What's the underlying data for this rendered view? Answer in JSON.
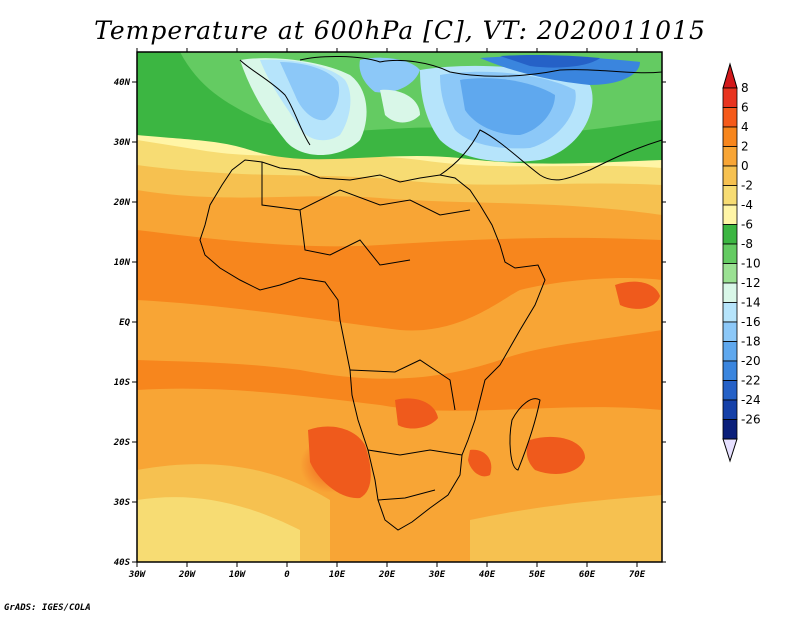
{
  "title": "Temperature at 600hPa [C], VT: 2020011015",
  "footer": "GrADS: IGES/COLA",
  "map": {
    "lon_range": [
      -30,
      75
    ],
    "lat_range": [
      -40,
      45
    ],
    "lon_ticks": [
      "30W",
      "20W",
      "10W",
      "0",
      "10E",
      "20E",
      "30E",
      "40E",
      "50E",
      "60E",
      "70E"
    ],
    "lat_ticks": [
      "40N",
      "30N",
      "20N",
      "10N",
      "EQ",
      "10S",
      "20S",
      "30S",
      "40S"
    ]
  },
  "colorbar": {
    "labels": [
      "8",
      "6",
      "4",
      "2",
      "0",
      "-2",
      "-4",
      "-6",
      "-8",
      "-10",
      "-12",
      "-14",
      "-16",
      "-18",
      "-20",
      "-22",
      "-24",
      "-26"
    ],
    "colors": [
      "#e8341f",
      "#f55a1a",
      "#f7861d",
      "#f8a535",
      "#f6c150",
      "#f7dc73",
      "#fff5a6",
      "#3cb642",
      "#64cb62",
      "#9be193",
      "#d9f7e8",
      "#b6e4fb",
      "#8cc8f8",
      "#5fa8ee",
      "#3a85de",
      "#2561c7",
      "#1540a8",
      "#0a1f7a"
    ],
    "over_color": "#d2191b",
    "under_color": "#e6e0ff"
  }
}
